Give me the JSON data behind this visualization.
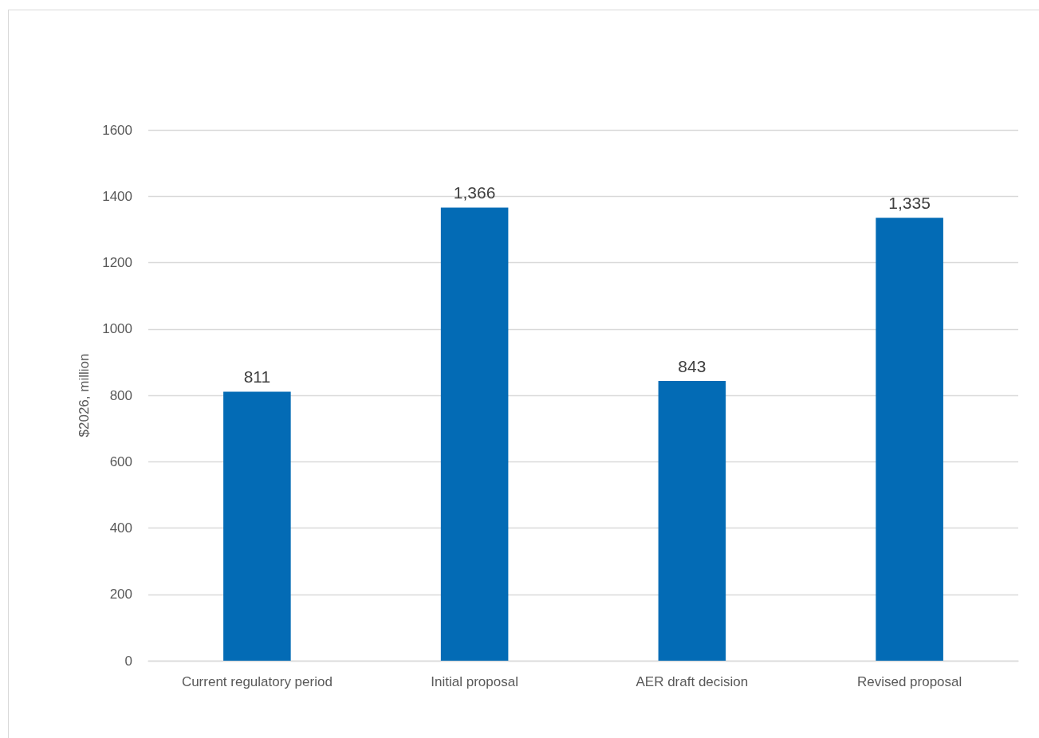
{
  "chart_data": {
    "type": "bar",
    "ylabel": "$2026, million",
    "categories": [
      "Current regulatory period",
      "Initial proposal",
      "AER draft decision",
      "Revised proposal"
    ],
    "values": [
      811,
      1366,
      843,
      1335
    ],
    "value_labels": [
      "811",
      "1,366",
      "843",
      "1,335"
    ],
    "color": "#036bb5",
    "ylim": [
      0,
      1600
    ],
    "yticks": [
      0,
      200,
      400,
      600,
      800,
      1000,
      1200,
      1400,
      1600
    ],
    "grid": "y"
  }
}
